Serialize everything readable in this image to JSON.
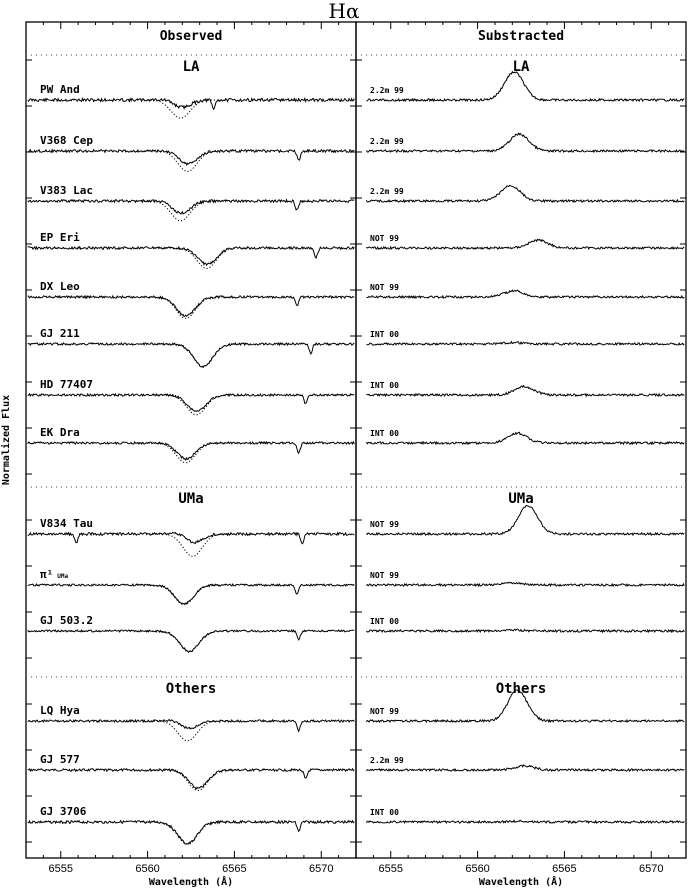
{
  "chart_data": {
    "type": "line",
    "title": "Hα",
    "ylabel": "Normalized Flux",
    "xlim": [
      6553,
      6572
    ],
    "x_ticks": [
      6555,
      6560,
      6565,
      6570
    ],
    "x_tick_labels": [
      "6555",
      "6560",
      "6565",
      "6570"
    ],
    "panels": [
      {
        "heading": "Observed",
        "xlabel": "Wavelength (Å)",
        "groups": [
          "LA",
          "UMa",
          "Others"
        ],
        "stars": [
          {
            "label": "PW  And",
            "group": "LA",
            "absorption_center": 6561.9,
            "absorption_depth": 0.55,
            "emission_fill_in": 0.62,
            "telluric": [
              6563.8
            ]
          },
          {
            "label": "V368  Cep",
            "group": "LA",
            "absorption_center": 6562.3,
            "absorption_depth": 0.62,
            "emission_fill_in": 0.38,
            "telluric": [
              6568.7
            ]
          },
          {
            "label": "V383  Lac",
            "group": "LA",
            "absorption_center": 6561.9,
            "absorption_depth": 0.6,
            "emission_fill_in": 0.4,
            "telluric": [
              6568.6
            ]
          },
          {
            "label": "EP  Eri",
            "group": "LA",
            "absorption_center": 6563.4,
            "absorption_depth": 0.62,
            "emission_fill_in": 0.2,
            "telluric": [
              6569.7
            ]
          },
          {
            "label": "DX  Leo",
            "group": "LA",
            "absorption_center": 6562.2,
            "absorption_depth": 0.65,
            "emission_fill_in": 0.12,
            "telluric": [
              6568.6
            ]
          },
          {
            "label": "GJ  211",
            "group": "LA",
            "absorption_center": 6563.2,
            "absorption_depth": 0.68,
            "emission_fill_in": 0.0,
            "telluric": [
              6569.4
            ]
          },
          {
            "label": "HD  77407",
            "group": "LA",
            "absorption_center": 6562.8,
            "absorption_depth": 0.6,
            "emission_fill_in": 0.18,
            "telluric": [
              6569.1
            ]
          },
          {
            "label": "EK  Dra",
            "group": "LA",
            "absorption_center": 6562.2,
            "absorption_depth": 0.6,
            "emission_fill_in": 0.2,
            "telluric": [
              6568.7
            ]
          },
          {
            "label": "V834  Tau",
            "group": "UMa",
            "absorption_center": 6562.6,
            "absorption_depth": 0.68,
            "emission_fill_in": 0.65,
            "telluric": [
              6555.9,
              6568.9
            ]
          },
          {
            "label": "π¹",
            "label_suffix": "UMa",
            "group": "UMa",
            "absorption_center": 6562.1,
            "absorption_depth": 0.6,
            "emission_fill_in": 0.05,
            "telluric": [
              6568.6
            ]
          },
          {
            "label": "GJ  503.2",
            "group": "UMa",
            "absorption_center": 6562.4,
            "absorption_depth": 0.62,
            "emission_fill_in": 0.0,
            "telluric": [
              6568.7
            ]
          },
          {
            "label": "LQ  Hya",
            "group": "Others",
            "absorption_center": 6562.3,
            "absorption_depth": 0.6,
            "emission_fill_in": 0.65,
            "telluric": [
              6568.7
            ]
          },
          {
            "label": "GJ  577",
            "group": "Others",
            "absorption_center": 6562.9,
            "absorption_depth": 0.62,
            "emission_fill_in": 0.1,
            "telluric": [
              6569.1
            ]
          },
          {
            "label": "GJ  3706",
            "group": "Others",
            "absorption_center": 6562.3,
            "absorption_depth": 0.66,
            "emission_fill_in": 0.0,
            "telluric": [
              6568.7
            ]
          }
        ]
      },
      {
        "heading": "Substracted",
        "xlabel": "Wavelength (Å)",
        "groups": [
          "LA",
          "UMa",
          "Others"
        ],
        "spectra": [
          {
            "label": "2.2m  99",
            "emission_center": 6562.1,
            "emission_peak": 1.0
          },
          {
            "label": "2.2m  99",
            "emission_center": 6562.4,
            "emission_peak": 0.6
          },
          {
            "label": "2.2m  99",
            "emission_center": 6561.9,
            "emission_peak": 0.55
          },
          {
            "label": "NOT  99",
            "emission_center": 6563.5,
            "emission_peak": 0.28
          },
          {
            "label": "NOT  99",
            "emission_center": 6562.1,
            "emission_peak": 0.22
          },
          {
            "label": "INT  00",
            "emission_center": 6562.1,
            "emission_peak": 0.05
          },
          {
            "label": "INT  00",
            "emission_center": 6562.7,
            "emission_peak": 0.3
          },
          {
            "label": "INT  00",
            "emission_center": 6562.3,
            "emission_peak": 0.35
          },
          {
            "label": "NOT  99",
            "emission_center": 6562.9,
            "emission_peak": 1.0
          },
          {
            "label": "NOT  99",
            "emission_center": 6562.1,
            "emission_peak": 0.08
          },
          {
            "label": "INT  00",
            "emission_center": 6562.1,
            "emission_peak": 0.03
          },
          {
            "label": "NOT  99",
            "emission_center": 6562.3,
            "emission_peak": 1.1
          },
          {
            "label": "2.2m  99",
            "emission_center": 6562.7,
            "emission_peak": 0.15
          },
          {
            "label": "INT  00",
            "emission_center": 6562.3,
            "emission_peak": 0.03
          }
        ]
      }
    ]
  }
}
